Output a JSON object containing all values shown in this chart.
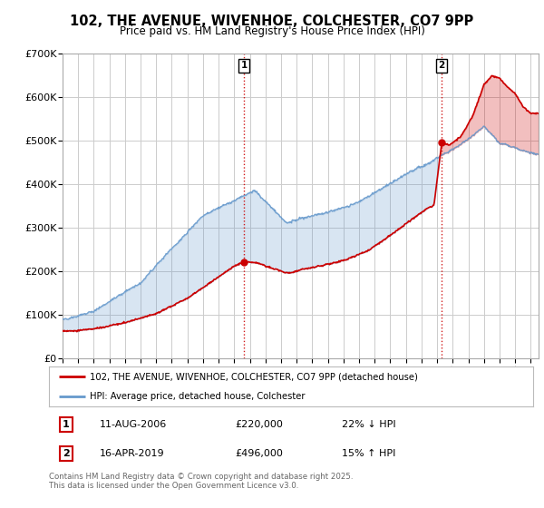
{
  "title": "102, THE AVENUE, WIVENHOE, COLCHESTER, CO7 9PP",
  "subtitle": "Price paid vs. HM Land Registry's House Price Index (HPI)",
  "ylim": [
    0,
    700000
  ],
  "yticks": [
    0,
    100000,
    200000,
    300000,
    400000,
    500000,
    600000,
    700000
  ],
  "ytick_labels": [
    "£0",
    "£100K",
    "£200K",
    "£300K",
    "£400K",
    "£500K",
    "£600K",
    "£700K"
  ],
  "background_color": "#ffffff",
  "grid_color": "#cccccc",
  "fill_color": "#ddeeff",
  "red_color": "#cc0000",
  "blue_color": "#6699cc",
  "marker1_x": 2006.62,
  "marker1_y": 220000,
  "marker2_x": 2019.29,
  "marker2_y": 496000,
  "legend_line1": "102, THE AVENUE, WIVENHOE, COLCHESTER, CO7 9PP (detached house)",
  "legend_line2": "HPI: Average price, detached house, Colchester",
  "table_row1": [
    "1",
    "11-AUG-2006",
    "£220,000",
    "22% ↓ HPI"
  ],
  "table_row2": [
    "2",
    "16-APR-2019",
    "£496,000",
    "15% ↑ HPI"
  ],
  "footnote": "Contains HM Land Registry data © Crown copyright and database right 2025.\nThis data is licensed under the Open Government Licence v3.0.",
  "xmin": 1995,
  "xmax": 2025.5
}
